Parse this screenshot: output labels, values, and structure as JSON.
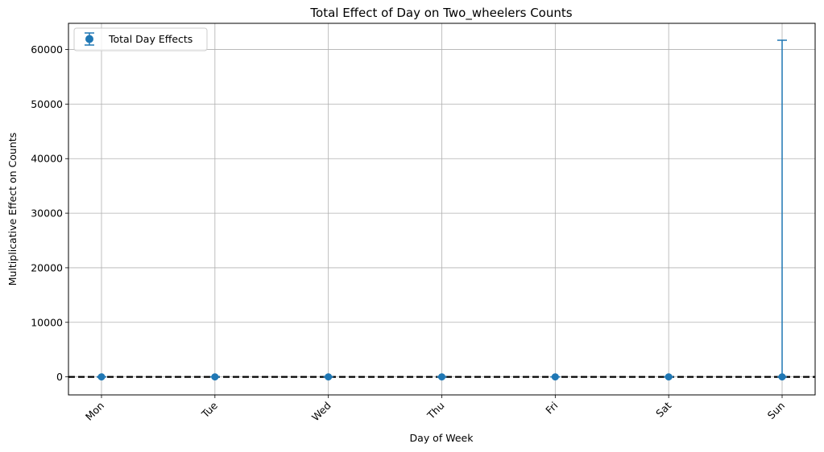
{
  "chart_data": {
    "type": "scatter",
    "title": "Total Effect of Day on Two_wheelers Counts",
    "xlabel": "Day of Week",
    "ylabel": "Multiplicative Effect on Counts",
    "categories": [
      "Mon",
      "Tue",
      "Wed",
      "Thu",
      "Fri",
      "Sat",
      "Sun"
    ],
    "series": [
      {
        "name": "Total Day Effects",
        "values": [
          1.0,
          1.0,
          1.0,
          1.0,
          1.0,
          1.1,
          1.0
        ],
        "err_low": [
          0.5,
          0.5,
          0.5,
          0.5,
          0.5,
          0.5,
          0.5
        ],
        "err_high": [
          1.5,
          1.5,
          1.5,
          1.5,
          1.5,
          1.8,
          61700
        ],
        "color": "#1f77b4"
      }
    ],
    "reference_line": {
      "y": 1,
      "style": "dashed",
      "color": "#000000"
    },
    "ylim": [
      -3300,
      64800
    ],
    "yticks": [
      0,
      10000,
      20000,
      30000,
      40000,
      50000,
      60000
    ],
    "xtick_rotation": 45,
    "grid": true,
    "legend": "top-left"
  }
}
